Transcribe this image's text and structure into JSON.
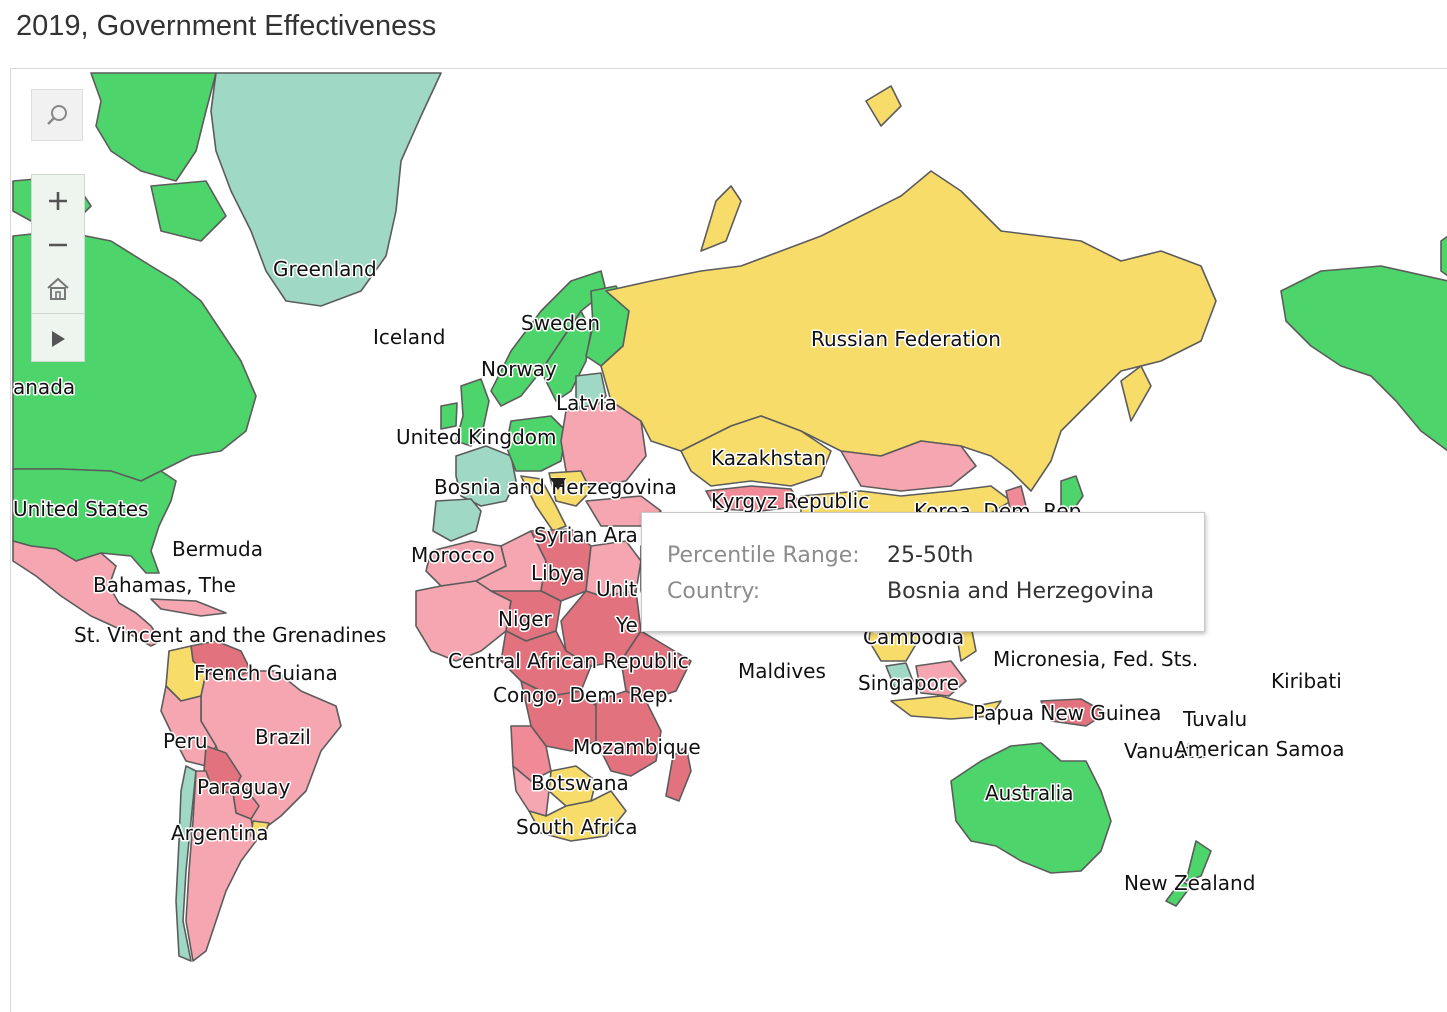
{
  "title": "2019, Government Effectiveness",
  "colors": {
    "range_75_100": "#4dd46a",
    "range_75_100_alt": "#9fd8c4",
    "range_50_75": "#f8dc6a",
    "range_25_50": "#f5a6b0",
    "range_0_25": "#e2737e",
    "range_0_10": "#f08a96",
    "border": "#5c5c5c"
  },
  "toolbar": {
    "search_icon": "magnifier-icon",
    "zoom_in_icon": "plus-icon",
    "zoom_out_icon": "minus-icon",
    "home_icon": "home-icon",
    "expand_icon": "play-arrow-icon"
  },
  "tooltip": {
    "range_key": "Percentile Range:",
    "range_value": "25-50th",
    "country_key": "Country:",
    "country_value": "Bosnia and Herzegovina"
  },
  "labels": [
    "Greenland",
    "Iceland",
    "Sweden",
    "Norway",
    "Latvia",
    "United Kingdom",
    "Russian Federation",
    "Kazakhstan",
    "Bosnia and Herzegovina",
    "Kyrgyz Republic",
    "Korea, Dem. Rep.",
    "anada",
    "United States",
    "Bermuda",
    "Bahamas, The",
    "Morocco",
    "Syrian Ara",
    "Libya",
    "Unit",
    "Ye",
    "Niger",
    "St. Vincent and the Grenadines",
    "French Guiana",
    "Central African Republic",
    "Cambodia",
    "Maldives",
    "Micronesia, Fed. Sts.",
    "Kiribati",
    "Singapore",
    "Congo, Dem. Rep.",
    "Papua New Guinea",
    "Tuvalu",
    "Peru",
    "Brazil",
    "Mozambique",
    "Vanuatu",
    "American Samoa",
    "Paraguay",
    "Botswana",
    "Australia",
    "Argentina",
    "South Africa",
    "New Zealand"
  ]
}
